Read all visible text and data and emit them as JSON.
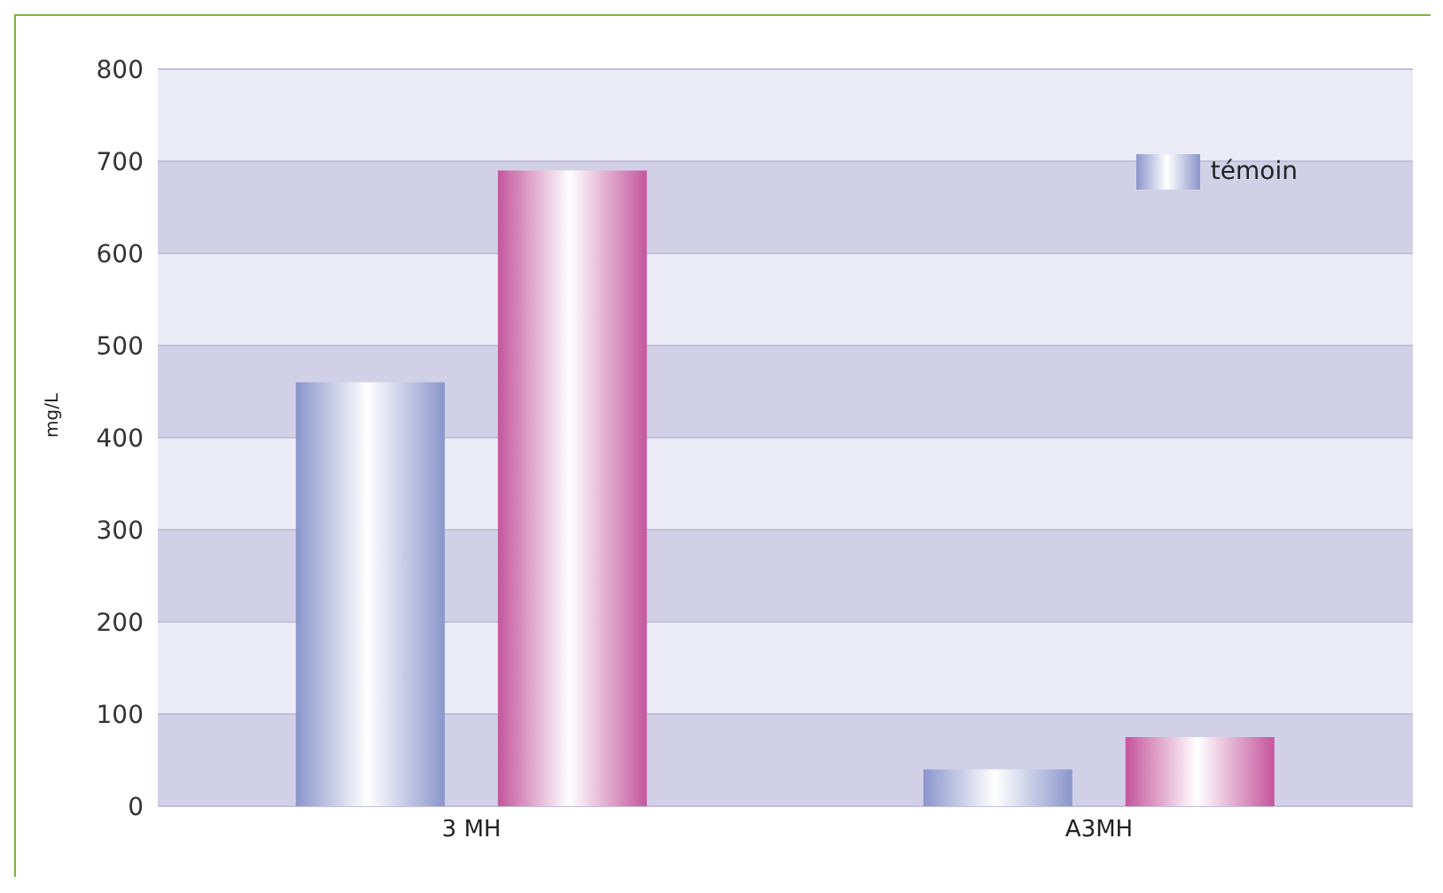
{
  "chart_data": {
    "type": "bar",
    "ylabel": "mg/L",
    "categories": [
      "3 MH",
      "A3MH"
    ],
    "series": [
      {
        "name": "témoin",
        "color": "#8a95cb",
        "values": [
          460,
          40
        ]
      },
      {
        "color": "#c4559c",
        "values": [
          690,
          75
        ]
      }
    ],
    "ylim": [
      0,
      800
    ],
    "yticks": [
      0,
      100,
      200,
      300,
      400,
      500,
      600,
      700,
      800
    ],
    "grid": "y",
    "legend": "top right"
  }
}
